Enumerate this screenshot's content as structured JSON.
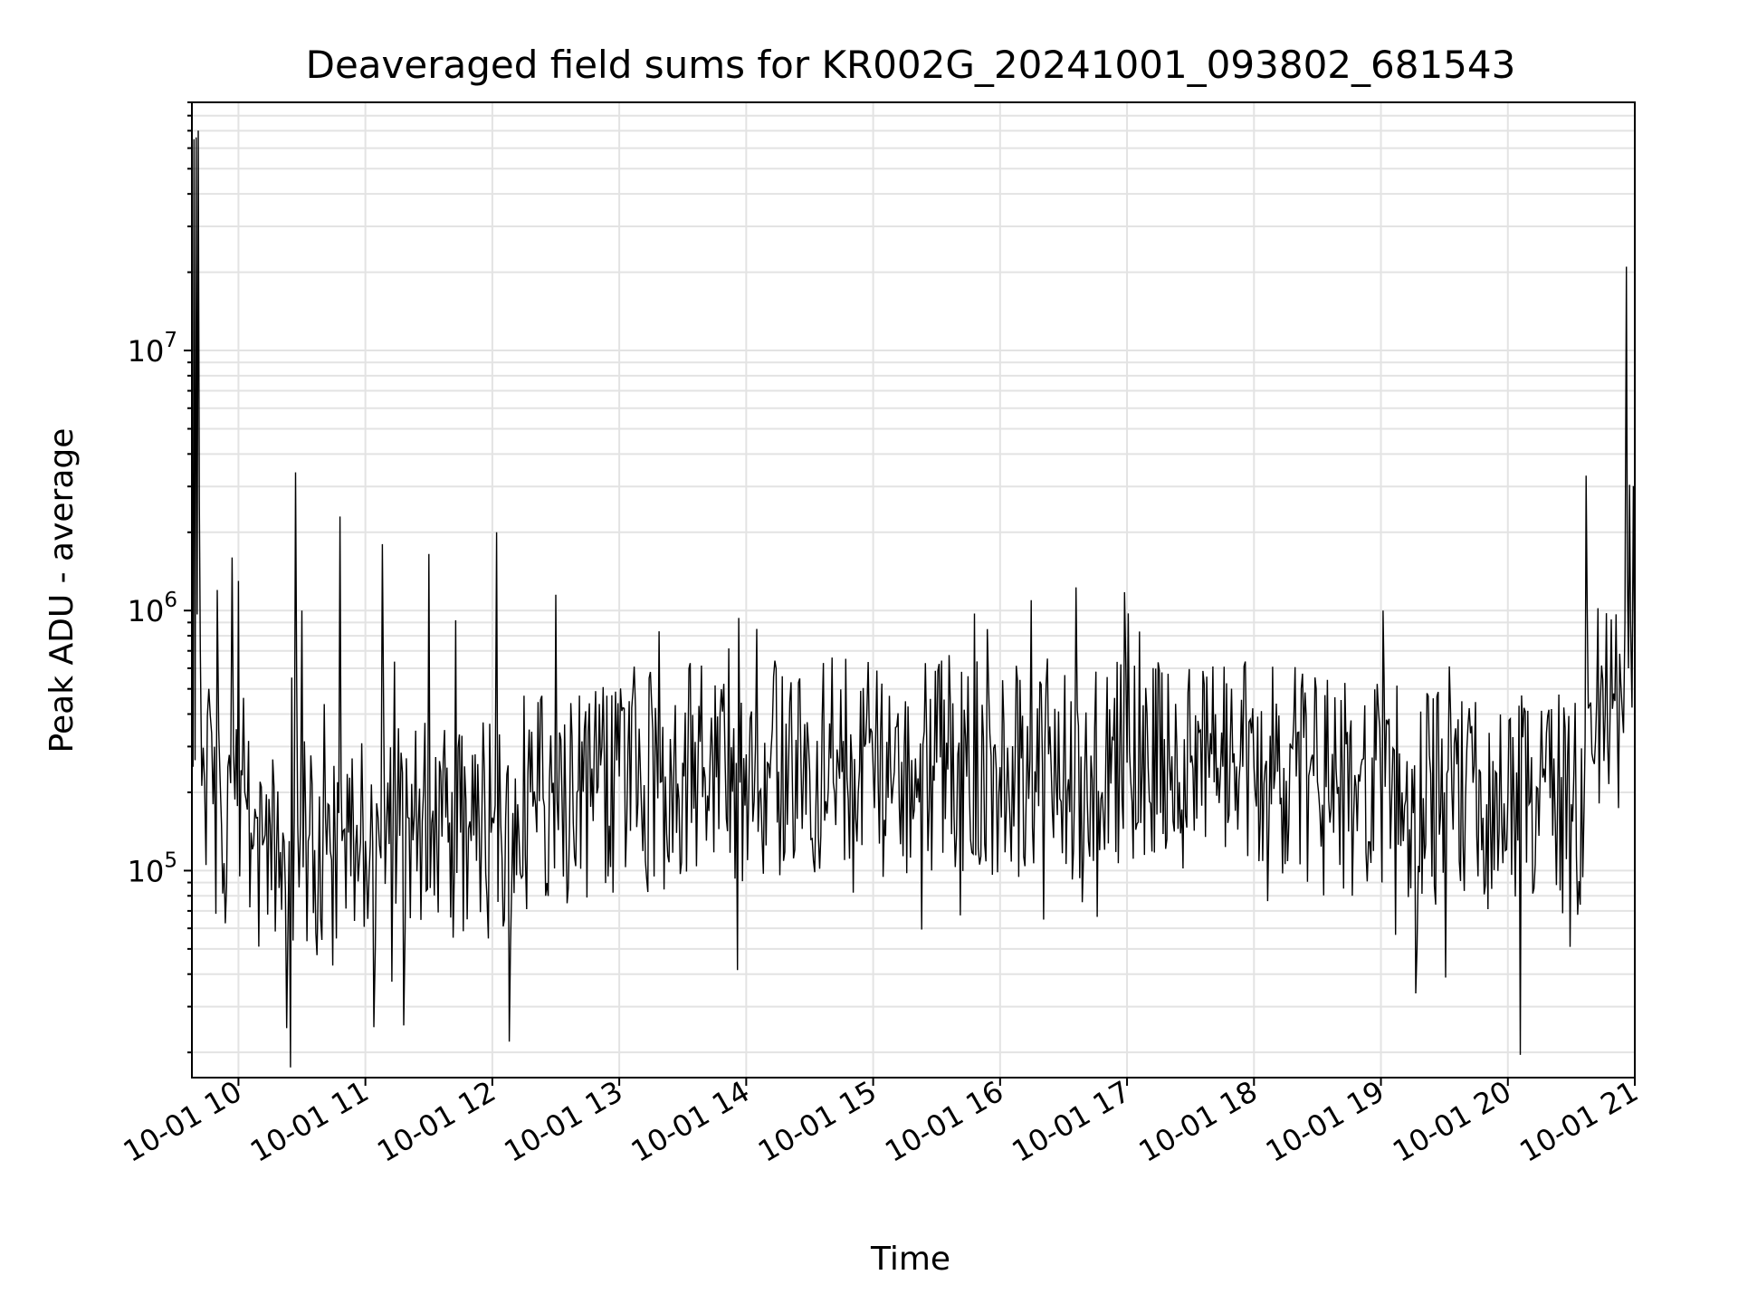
{
  "chart_data": {
    "type": "line",
    "title": "Deaveraged field sums for KR002G_20241001_093802_681543",
    "xlabel": "Time",
    "ylabel": "Peak ADU - average",
    "x_axis": {
      "type": "time",
      "range": [
        "2024-10-01 09:38",
        "2024-10-01 21:00"
      ],
      "ticks": [
        "10-01 10",
        "10-01 11",
        "10-01 12",
        "10-01 13",
        "10-01 14",
        "10-01 15",
        "10-01 16",
        "10-01 17",
        "10-01 18",
        "10-01 19",
        "10-01 20",
        "10-01 21"
      ]
    },
    "y_axis": {
      "scale": "log",
      "range": [
        16000,
        90000000
      ],
      "ticks": [
        {
          "base": "10",
          "exp": "5"
        },
        {
          "base": "10",
          "exp": "6"
        },
        {
          "base": "10",
          "exp": "7"
        }
      ]
    },
    "grid": true,
    "line_color": "#000000",
    "series": [
      {
        "points": [
          [
            "09:38",
            300000
          ],
          [
            "09:39",
            65000000
          ],
          [
            "09:40",
            66000000
          ],
          [
            "09:41",
            70000000
          ],
          [
            "09:42",
            700000
          ],
          [
            "09:44",
            220000
          ],
          [
            "09:46",
            500000
          ],
          [
            "09:48",
            180000
          ],
          [
            "09:50",
            1200000
          ],
          [
            "09:52",
            150000
          ],
          [
            "09:55",
            250000
          ],
          [
            "09:57",
            1600000
          ],
          [
            "09:59",
            350000
          ],
          [
            "10:00",
            1300000
          ],
          [
            "10:03",
            200000
          ],
          [
            "10:06",
            140000
          ],
          [
            "10:09",
            160000
          ],
          [
            "10:12",
            130000
          ],
          [
            "10:15",
            150000
          ],
          [
            "10:18",
            120000
          ],
          [
            "10:21",
            140000
          ],
          [
            "10:24",
            130000
          ],
          [
            "10:27",
            3400000
          ],
          [
            "10:28",
            150000
          ],
          [
            "10:30",
            1000000
          ],
          [
            "10:33",
            130000
          ],
          [
            "10:36",
            120000
          ],
          [
            "10:40",
            140000
          ],
          [
            "10:44",
            110000
          ],
          [
            "10:48",
            2300000
          ],
          [
            "10:49",
            130000
          ],
          [
            "10:52",
            140000
          ],
          [
            "10:56",
            150000
          ],
          [
            "11:00",
            130000
          ],
          [
            "11:04",
            25000
          ],
          [
            "11:06",
            160000
          ],
          [
            "11:08",
            1800000
          ],
          [
            "11:10",
            150000
          ],
          [
            "11:15",
            140000
          ],
          [
            "11:20",
            160000
          ],
          [
            "11:25",
            150000
          ],
          [
            "11:30",
            1650000
          ],
          [
            "11:32",
            170000
          ],
          [
            "11:38",
            160000
          ],
          [
            "11:45",
            140000
          ],
          [
            "11:50",
            130000
          ],
          [
            "11:55",
            150000
          ],
          [
            "12:00",
            160000
          ],
          [
            "12:02",
            2000000
          ],
          [
            "12:04",
            150000
          ],
          [
            "12:08",
            22000
          ],
          [
            "12:12",
            180000
          ],
          [
            "12:18",
            200000
          ],
          [
            "12:24",
            190000
          ],
          [
            "12:30",
            1150000
          ],
          [
            "12:33",
            180000
          ],
          [
            "12:40",
            200000
          ],
          [
            "12:50",
            210000
          ],
          [
            "13:00",
            230000
          ],
          [
            "13:10",
            240000
          ],
          [
            "13:20",
            220000
          ],
          [
            "13:30",
            260000
          ],
          [
            "13:40",
            250000
          ],
          [
            "13:50",
            270000
          ],
          [
            "14:00",
            280000
          ],
          [
            "14:05",
            850000
          ],
          [
            "14:10",
            260000
          ],
          [
            "14:20",
            250000
          ],
          [
            "14:30",
            240000
          ],
          [
            "14:40",
            270000
          ],
          [
            "14:50",
            260000
          ],
          [
            "15:00",
            250000
          ],
          [
            "15:10",
            240000
          ],
          [
            "15:20",
            270000
          ],
          [
            "15:30",
            260000
          ],
          [
            "15:40",
            280000
          ],
          [
            "16:00",
            250000
          ],
          [
            "16:10",
            270000
          ],
          [
            "16:20",
            260000
          ],
          [
            "16:30",
            250000
          ],
          [
            "16:40",
            240000
          ],
          [
            "16:50",
            280000
          ],
          [
            "17:00",
            260000
          ],
          [
            "17:10",
            250000
          ],
          [
            "17:20",
            270000
          ],
          [
            "17:30",
            260000
          ],
          [
            "17:40",
            280000
          ],
          [
            "17:50",
            260000
          ],
          [
            "18:00",
            250000
          ],
          [
            "18:10",
            240000
          ],
          [
            "18:20",
            230000
          ],
          [
            "18:30",
            220000
          ],
          [
            "18:40",
            210000
          ],
          [
            "18:50",
            220000
          ],
          [
            "19:00",
            200000
          ],
          [
            "19:01",
            1000000
          ],
          [
            "19:02",
            210000
          ],
          [
            "19:10",
            200000
          ],
          [
            "19:20",
            190000
          ],
          [
            "19:30",
            200000
          ],
          [
            "19:40",
            190000
          ],
          [
            "19:50",
            180000
          ],
          [
            "20:00",
            190000
          ],
          [
            "20:10",
            180000
          ],
          [
            "20:20",
            190000
          ],
          [
            "20:30",
            180000
          ],
          [
            "20:36",
            170000
          ],
          [
            "20:37",
            3300000
          ],
          [
            "20:38",
            420000
          ],
          [
            "20:42",
            450000
          ],
          [
            "20:46",
            400000
          ],
          [
            "20:50",
            480000
          ],
          [
            "20:54",
            420000
          ],
          [
            "20:56",
            21000000
          ],
          [
            "20:57",
            600000
          ],
          [
            "20:58",
            900000
          ],
          [
            "21:00",
            500000
          ]
        ]
      }
    ]
  }
}
